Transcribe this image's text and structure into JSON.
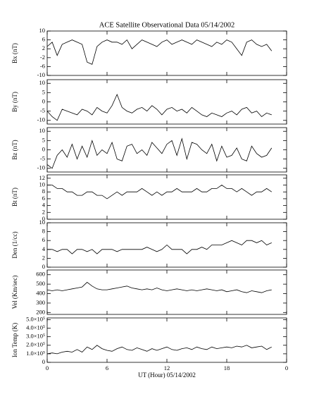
{
  "chart_data": [
    {
      "type": "line",
      "title": "ACE Satellite Observational Data  05/14/2002",
      "ylabel": "Bx (nT)",
      "x": [
        0,
        0.5,
        1,
        1.5,
        2,
        2.5,
        3,
        3.5,
        4,
        4.5,
        5,
        5.5,
        6,
        6.5,
        7,
        7.5,
        8,
        8.5,
        9,
        9.5,
        10,
        10.5,
        11,
        11.5,
        12,
        12.5,
        13,
        13.5,
        14,
        14.5,
        15,
        15.5,
        16,
        16.5,
        17,
        17.5,
        18,
        18.5,
        19,
        19.5,
        20,
        20.5,
        21,
        21.5,
        22,
        22.5
      ],
      "values": [
        3,
        5,
        -1,
        4,
        5,
        6,
        5,
        4,
        -4,
        -5,
        3,
        5,
        6,
        5,
        5,
        4,
        6,
        2,
        4,
        6,
        5,
        4,
        3,
        5,
        6,
        4,
        5,
        6,
        5,
        4,
        6,
        5,
        4,
        3,
        5,
        4,
        6,
        5,
        2,
        -1,
        5,
        6,
        4,
        3,
        4,
        1
      ],
      "color": "#000000",
      "xlim": [
        0,
        24
      ],
      "ylim": [
        -10,
        10
      ],
      "yticks": [
        -10,
        -6,
        -2,
        2,
        6,
        10
      ]
    },
    {
      "type": "line",
      "ylabel": "By (nT)",
      "x": [
        0,
        0.5,
        1,
        1.5,
        2,
        2.5,
        3,
        3.5,
        4,
        4.5,
        5,
        5.5,
        6,
        6.5,
        7,
        7.5,
        8,
        8.5,
        9,
        9.5,
        10,
        10.5,
        11,
        11.5,
        12,
        12.5,
        13,
        13.5,
        14,
        14.5,
        15,
        15.5,
        16,
        16.5,
        17,
        17.5,
        18,
        18.5,
        19,
        19.5,
        20,
        20.5,
        21,
        21.5,
        22,
        22.5
      ],
      "values": [
        -5,
        -8,
        -10,
        -4,
        -5,
        -6,
        -7,
        -4,
        -5,
        -7,
        -3,
        -5,
        -6,
        -2,
        4,
        -3,
        -5,
        -6,
        -4,
        -3,
        -5,
        -2,
        -4,
        -7,
        -4,
        -3,
        -5,
        -4,
        -6,
        -3,
        -5,
        -7,
        -8,
        -6,
        -7,
        -8,
        -6,
        -5,
        -7,
        -4,
        -3,
        -6,
        -5,
        -8,
        -6,
        -7
      ],
      "color": "#000000",
      "xlim": [
        0,
        24
      ],
      "ylim": [
        -12,
        12
      ],
      "yticks": [
        -10,
        -5,
        0,
        5,
        10
      ]
    },
    {
      "type": "line",
      "ylabel": "Bz (nT)",
      "x": [
        0,
        0.5,
        1,
        1.5,
        2,
        2.5,
        3,
        3.5,
        4,
        4.5,
        5,
        5.5,
        6,
        6.5,
        7,
        7.5,
        8,
        8.5,
        9,
        9.5,
        10,
        10.5,
        11,
        11.5,
        12,
        12.5,
        13,
        13.5,
        14,
        14.5,
        15,
        15.5,
        16,
        16.5,
        17,
        17.5,
        18,
        18.5,
        19,
        19.5,
        20,
        20.5,
        21,
        21.5,
        22,
        22.5
      ],
      "values": [
        -8,
        -10,
        -3,
        0,
        -4,
        3,
        -5,
        2,
        -4,
        5,
        -3,
        0,
        -2,
        4,
        -5,
        -6,
        2,
        3,
        -2,
        0,
        -3,
        4,
        1,
        -2,
        3,
        5,
        -3,
        6,
        -5,
        4,
        3,
        0,
        -2,
        3,
        -6,
        2,
        -4,
        -3,
        1,
        -5,
        -6,
        2,
        -2,
        -4,
        -3,
        1
      ],
      "color": "#000000",
      "xlim": [
        0,
        24
      ],
      "ylim": [
        -12,
        12
      ],
      "yticks": [
        -10,
        -5,
        0,
        5,
        10
      ]
    },
    {
      "type": "line",
      "ylabel": "Bt (nT)",
      "x": [
        0,
        0.5,
        1,
        1.5,
        2,
        2.5,
        3,
        3.5,
        4,
        4.5,
        5,
        5.5,
        6,
        6.5,
        7,
        7.5,
        8,
        8.5,
        9,
        9.5,
        10,
        10.5,
        11,
        11.5,
        12,
        12.5,
        13,
        13.5,
        14,
        14.5,
        15,
        15.5,
        16,
        16.5,
        17,
        17.5,
        18,
        18.5,
        19,
        19.5,
        20,
        20.5,
        21,
        21.5,
        22,
        22.5
      ],
      "values": [
        10,
        10,
        9,
        9,
        8,
        8,
        7,
        7,
        8,
        8,
        7,
        7,
        6,
        7,
        8,
        7,
        8,
        8,
        8,
        9,
        8,
        7,
        8,
        7,
        8,
        8,
        9,
        8,
        8,
        8,
        9,
        8,
        8,
        9,
        9,
        10,
        9,
        9,
        8,
        9,
        8,
        7,
        8,
        8,
        9,
        8
      ],
      "color": "#000000",
      "xlim": [
        0,
        24
      ],
      "ylim": [
        0,
        13
      ],
      "yticks": [
        0,
        2,
        4,
        6,
        8,
        10,
        12
      ]
    },
    {
      "type": "line",
      "ylabel": "Den (1/cc)",
      "x": [
        0,
        0.5,
        1,
        1.5,
        2,
        2.5,
        3,
        3.5,
        4,
        4.5,
        5,
        5.5,
        6,
        6.5,
        7,
        7.5,
        8,
        8.5,
        9,
        9.5,
        10,
        10.5,
        11,
        11.5,
        12,
        12.5,
        13,
        13.5,
        14,
        14.5,
        15,
        15.5,
        16,
        16.5,
        17,
        17.5,
        18,
        18.5,
        19,
        19.5,
        20,
        20.5,
        21,
        21.5,
        22,
        22.5
      ],
      "values": [
        4,
        4,
        3.5,
        4,
        4,
        3,
        4,
        4,
        3.5,
        4,
        3,
        4,
        4,
        4,
        3.5,
        4,
        4,
        4,
        4,
        4,
        4.5,
        4,
        3.5,
        4,
        5,
        4,
        4,
        4,
        3,
        4,
        4,
        4.5,
        4,
        5,
        5,
        5,
        5.5,
        6,
        5.5,
        5,
        6,
        6,
        5.5,
        6,
        5,
        5.5
      ],
      "color": "#000000",
      "xlim": [
        0,
        24
      ],
      "ylim": [
        0,
        10
      ],
      "yticks": [
        0,
        2,
        4,
        6,
        8,
        10
      ]
    },
    {
      "type": "line",
      "ylabel": "Vel (Km/sec)",
      "x": [
        0,
        0.5,
        1,
        1.5,
        2,
        2.5,
        3,
        3.5,
        4,
        4.5,
        5,
        5.5,
        6,
        6.5,
        7,
        7.5,
        8,
        8.5,
        9,
        9.5,
        10,
        10.5,
        11,
        11.5,
        12,
        12.5,
        13,
        13.5,
        14,
        14.5,
        15,
        15.5,
        16,
        16.5,
        17,
        17.5,
        18,
        18.5,
        19,
        19.5,
        20,
        20.5,
        21,
        21.5,
        22,
        22.5
      ],
      "values": [
        440,
        430,
        440,
        430,
        440,
        450,
        460,
        470,
        520,
        480,
        450,
        440,
        440,
        450,
        460,
        470,
        480,
        460,
        450,
        440,
        450,
        440,
        460,
        440,
        430,
        440,
        450,
        440,
        430,
        440,
        430,
        440,
        450,
        440,
        430,
        440,
        420,
        430,
        440,
        420,
        410,
        430,
        420,
        410,
        430,
        440
      ],
      "color": "#000000",
      "xlim": [
        0,
        24
      ],
      "ylim": [
        180,
        650
      ],
      "yticks": [
        200,
        300,
        400,
        500,
        600
      ]
    },
    {
      "type": "line",
      "ylabel": "Ion Temp (K)",
      "xlabel": "UT (Hour)  05/14/2002",
      "x": [
        0,
        0.5,
        1,
        1.5,
        2,
        2.5,
        3,
        3.5,
        4,
        4.5,
        5,
        5.5,
        6,
        6.5,
        7,
        7.5,
        8,
        8.5,
        9,
        9.5,
        10,
        10.5,
        11,
        11.5,
        12,
        12.5,
        13,
        13.5,
        14,
        14.5,
        15,
        15.5,
        16,
        16.5,
        17,
        17.5,
        18,
        18.5,
        19,
        19.5,
        20,
        20.5,
        21,
        21.5,
        22,
        22.5
      ],
      "values": [
        100000,
        110000,
        100000,
        120000,
        130000,
        120000,
        150000,
        120000,
        180000,
        150000,
        200000,
        160000,
        140000,
        130000,
        160000,
        180000,
        150000,
        140000,
        170000,
        150000,
        130000,
        160000,
        140000,
        160000,
        180000,
        150000,
        140000,
        160000,
        170000,
        150000,
        180000,
        160000,
        150000,
        180000,
        160000,
        170000,
        180000,
        170000,
        190000,
        180000,
        200000,
        170000,
        180000,
        190000,
        150000,
        180000
      ],
      "color": "#000000",
      "xlim": [
        0,
        24
      ],
      "ylim": [
        0,
        520000
      ],
      "yticks": [
        0,
        {
          "value": 100000,
          "label": "1.0×10⁵"
        },
        {
          "value": 200000,
          "label": "2.0×10⁵"
        },
        {
          "value": 300000,
          "label": "3.0×10⁵"
        },
        {
          "value": 400000,
          "label": "4.0×10⁵"
        },
        {
          "value": 500000,
          "label": "5.0×10⁵"
        }
      ],
      "xticks": [
        0,
        6,
        12,
        18,
        {
          "value": 24,
          "label": "0"
        }
      ]
    }
  ]
}
